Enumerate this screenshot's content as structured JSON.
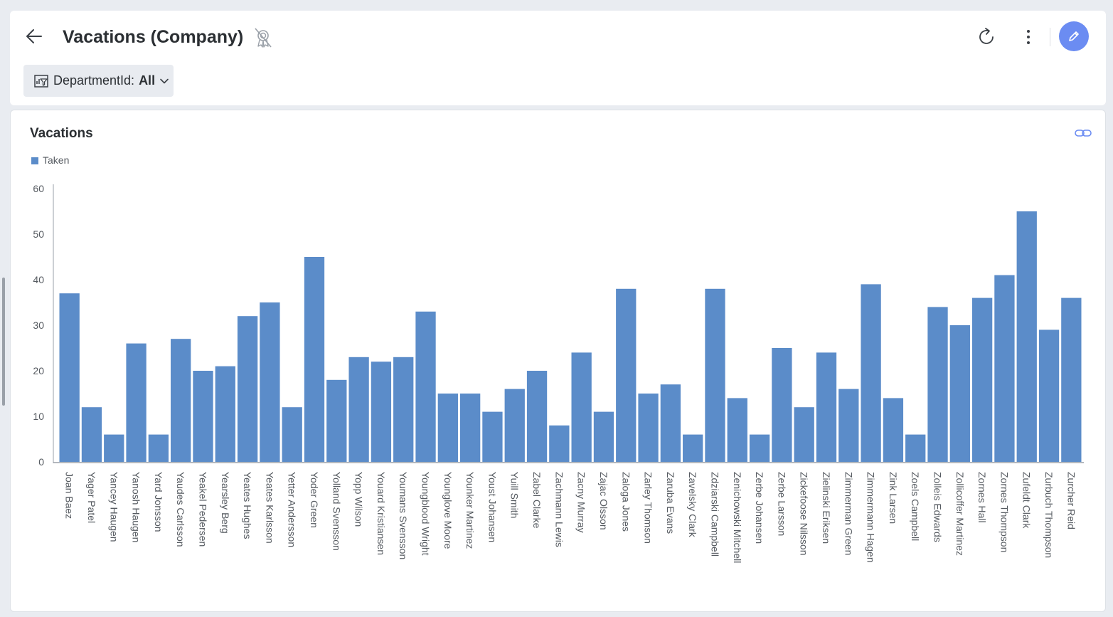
{
  "header": {
    "title": "Vacations (Company)"
  },
  "filter": {
    "label": "DepartmentId:",
    "value": "All"
  },
  "colors": {
    "accent": "#6b8cf2",
    "bar": "#5b8cc9"
  },
  "icons": {
    "back": "arrow-left-icon",
    "badge": "certified-badge-off-icon",
    "refresh": "refresh-icon",
    "more": "more-vertical-icon",
    "edit": "pencil-icon",
    "filter": "filter-icon",
    "link": "link-icon"
  },
  "chart_data": {
    "type": "bar",
    "title": "Vacations",
    "legend": "top-left",
    "series": [
      {
        "name": "Taken",
        "values": [
          37,
          12,
          6,
          26,
          6,
          27,
          20,
          21,
          32,
          35,
          12,
          45,
          18,
          23,
          22,
          23,
          33,
          15,
          15,
          11,
          16,
          20,
          8,
          24,
          11,
          38,
          15,
          17,
          6,
          38,
          14,
          6,
          25,
          12,
          24,
          16,
          39,
          14,
          6,
          34,
          30,
          36,
          41,
          55,
          29,
          36
        ]
      }
    ],
    "categories": [
      "Joan Baez",
      "Yager Patel",
      "Yancey Haugen",
      "Yanosh Haugen",
      "Yard Jonsson",
      "Yaudes Carlsson",
      "Yeakel Pedersen",
      "Yearsley Berg",
      "Yeates Hughes",
      "Yeates Karlsson",
      "Yetter Andersson",
      "Yoder Green",
      "Yolland Svensson",
      "Yopp Wilson",
      "Youard Kristiansen",
      "Youmans Svensson",
      "Youngblood Wright",
      "Younglove Moore",
      "Younker Martinez",
      "Youst Johansen",
      "Yuill Smith",
      "Zabel Clarke",
      "Zachmann Lewis",
      "Zacny Murray",
      "Zajac Olsson",
      "Zaloga Jones",
      "Zarley Thomson",
      "Zaruba Evans",
      "Zavelsky Clark",
      "Zdziarski Campbell",
      "Zenichowski Mitchell",
      "Zerbe Johansen",
      "Zerbe Larsson",
      "Zickefoose Nilsson",
      "Zielinski Eriksen",
      "Zimmerman Green",
      "Zimmermann Hagen",
      "Zink Larsen",
      "Zoels Campbell",
      "Zolleis Edwards",
      "Zollicoffer Martinez",
      "Zornes Hall",
      "Zornes Thompson",
      "Zufeldt Clark",
      "Zurbuch Thompson",
      "Zurcher Reid"
    ],
    "ylim": [
      0,
      60
    ],
    "yticks": [
      0,
      10,
      20,
      30,
      40,
      50,
      60
    ],
    "grid": false
  }
}
